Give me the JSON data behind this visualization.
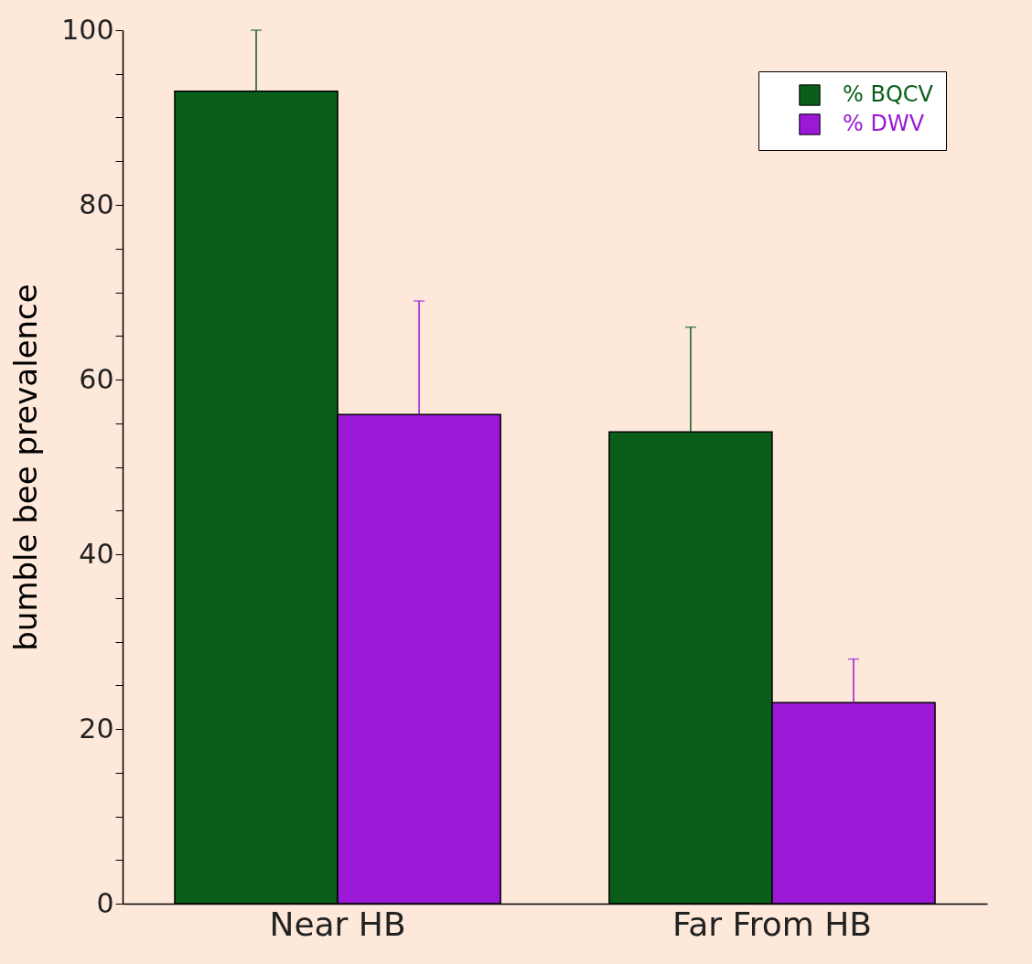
{
  "chart_data": {
    "type": "bar",
    "ylabel": "bumble bee prevalence",
    "categories": [
      "Near HB",
      "Far From HB"
    ],
    "series": [
      {
        "name": "% BQCV",
        "color": "#0a5e1a",
        "values": [
          93,
          54
        ],
        "errors": [
          [
            93,
            100
          ],
          [
            54,
            66
          ]
        ]
      },
      {
        "name": "% DWV",
        "color": "#9a18d6",
        "values": [
          56,
          23
        ],
        "errors": [
          [
            56,
            69
          ],
          [
            23,
            28
          ]
        ]
      }
    ],
    "ylim": [
      0,
      100
    ],
    "yticks": [
      0,
      {
        "value": 5,
        "label": null
      },
      {
        "value": 10,
        "label": null
      },
      {
        "value": 15,
        "label": null
      },
      20,
      {
        "value": 25,
        "label": null
      },
      {
        "value": 30,
        "label": null
      },
      {
        "value": 35,
        "label": null
      },
      40,
      {
        "value": 45,
        "label": null
      },
      {
        "value": 50,
        "label": null
      },
      {
        "value": 55,
        "label": null
      },
      60,
      {
        "value": 65,
        "label": null
      },
      {
        "value": 70,
        "label": null
      },
      {
        "value": 75,
        "label": null
      },
      80,
      {
        "value": 85,
        "label": null
      },
      {
        "value": 90,
        "label": null
      },
      {
        "value": 95,
        "label": null
      },
      100
    ],
    "grid": false,
    "legend": "top right"
  }
}
